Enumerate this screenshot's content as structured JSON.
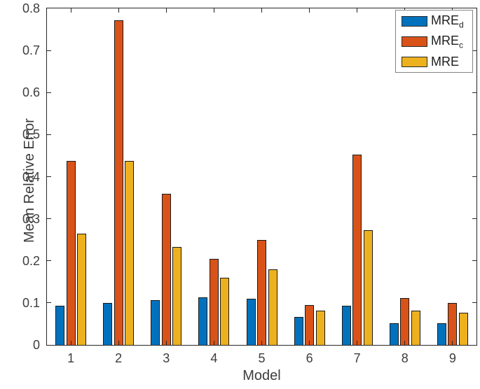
{
  "chart_data": {
    "type": "bar",
    "title": "",
    "xlabel": "Model",
    "ylabel": "Mean Relative Error",
    "categories": [
      "1",
      "2",
      "3",
      "4",
      "5",
      "6",
      "7",
      "8",
      "9"
    ],
    "series": [
      {
        "name": "MRE_d",
        "label_main": "MRE",
        "label_sub": "d",
        "color": "#0072BD",
        "values": [
          0.093,
          0.099,
          0.107,
          0.113,
          0.11,
          0.066,
          0.093,
          0.051,
          0.052
        ]
      },
      {
        "name": "MRE_c",
        "label_main": "MRE",
        "label_sub": "c",
        "color": "#D95319",
        "values": [
          0.438,
          0.772,
          0.36,
          0.205,
          0.25,
          0.095,
          0.453,
          0.111,
          0.1
        ]
      },
      {
        "name": "MRE",
        "label_main": "MRE",
        "label_sub": "",
        "color": "#EDB120",
        "values": [
          0.265,
          0.437,
          0.233,
          0.16,
          0.18,
          0.082,
          0.272,
          0.082,
          0.076
        ]
      }
    ],
    "ylim": [
      0,
      0.8
    ],
    "ytick_values": [
      0,
      0.1,
      0.2,
      0.3,
      0.4,
      0.5,
      0.6,
      0.7,
      0.8
    ],
    "ytick_labels": [
      "0",
      "0.1",
      "0.2",
      "0.3",
      "0.4",
      "0.5",
      "0.6",
      "0.7",
      "0.8"
    ],
    "grid": false,
    "legend_position": "top-right",
    "colors": {
      "axis": "#262626",
      "tick_text": "#3d3d3d",
      "bar_edge": "#1a1a1a",
      "legend_border": "#828282",
      "background": "#ffffff"
    }
  }
}
